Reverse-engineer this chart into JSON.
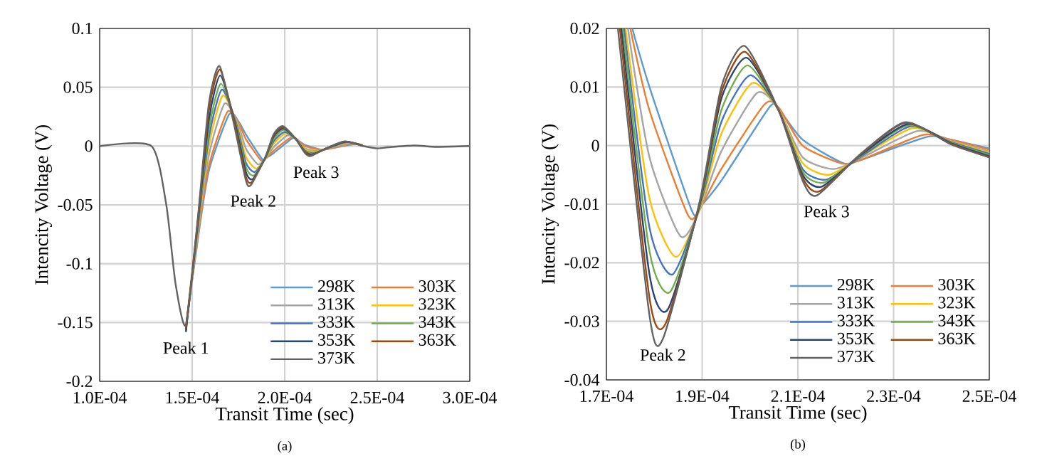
{
  "chart_data": [
    {
      "type": "line",
      "xlabel": "Transit Time (sec)",
      "ylabel": "Intencity Voltage (V)",
      "xlim": [
        0.0001,
        0.0003
      ],
      "ylim": [
        -0.2,
        0.1
      ],
      "xticks": [
        {
          "value": 0.0001,
          "label": "1.0E-04"
        },
        {
          "value": 0.00015,
          "label": "1.5E-04"
        },
        {
          "value": 0.0002,
          "label": "2.0E-04"
        },
        {
          "value": 0.00025,
          "label": "2.5E-04"
        },
        {
          "value": 0.0003,
          "label": "3.0E-04"
        }
      ],
      "yticks": [
        -0.2,
        -0.15,
        -0.1,
        -0.05,
        0,
        0.05,
        0.1
      ],
      "grid": true,
      "legend": "bottom right",
      "annotations": [
        {
          "text": "Peak 1",
          "x": 0.0001466,
          "y": -0.158
        },
        {
          "text": "Peak 2",
          "x": 0.000183,
          "y": -0.033
        },
        {
          "text": "Peak 3",
          "x": 0.000217,
          "y": -0.0085
        },
        "(a)"
      ],
      "series": [
        {
          "name": "298K",
          "color": "#5b9bd5",
          "x": [
            0.0001466,
            0.000153,
            0.000159,
            0.00017,
            0.0001754,
            0.000179,
            0.0001878,
            0.0001895,
            0.000194,
            0.000204,
            0.000206,
            0.000211,
            0.0002195,
            0.000223,
            0.000237,
            0.000242
          ],
          "values": [
            -0.154,
            -0.08,
            -0.021,
            0.027,
            0.02,
            0.01,
            -0.011,
            -0.0105,
            -0.006,
            0.0065,
            0.0062,
            0.001,
            -0.003,
            -0.0025,
            0.0015,
            0.001
          ]
        },
        {
          "name": "303K",
          "color": "#ed7d31",
          "x": [
            0.0001466,
            0.000153,
            0.000159,
            0.000169,
            0.000175,
            0.000179,
            0.000187,
            0.0001895,
            0.000194,
            0.000203,
            0.000206,
            0.000211,
            0.000219,
            0.000223,
            0.000236,
            0.000242
          ],
          "values": [
            -0.153,
            -0.078,
            -0.017,
            0.029,
            0.02,
            0.006,
            -0.0118,
            -0.0108,
            -0.004,
            0.007,
            0.0065,
            0.0,
            -0.003,
            -0.0025,
            0.0018,
            0.001
          ]
        },
        {
          "name": "313K",
          "color": "#a5a5a5",
          "x": [
            0.0001466,
            0.000153,
            0.000159,
            0.0001675,
            0.0001745,
            0.000179,
            0.0001855,
            0.0001895,
            0.000194,
            0.0002015,
            0.000206,
            0.000211,
            0.0002175,
            0.000223,
            0.000235,
            0.000242
          ],
          "values": [
            -0.155,
            -0.075,
            -0.008,
            0.036,
            0.02,
            -0.002,
            -0.0155,
            -0.011,
            -0.001,
            0.009,
            0.0062,
            -0.002,
            -0.004,
            -0.0022,
            0.0025,
            0.0008
          ]
        },
        {
          "name": "323K",
          "color": "#ffc000",
          "x": [
            0.0001466,
            0.000153,
            0.000159,
            0.0001665,
            0.000174,
            0.000179,
            0.0001845,
            0.0001895,
            0.000194,
            0.0002005,
            0.000206,
            0.000211,
            0.0002165,
            0.000223,
            0.000234,
            0.000242
          ],
          "values": [
            -0.156,
            -0.072,
            0.0,
            0.043,
            0.02,
            -0.009,
            -0.019,
            -0.0108,
            0.002,
            0.0107,
            0.006,
            -0.003,
            -0.005,
            -0.002,
            0.003,
            0.0007
          ]
        },
        {
          "name": "333K",
          "color": "#4472c4",
          "x": [
            0.0001466,
            0.000153,
            0.000159,
            0.000166,
            0.0001737,
            0.000179,
            0.0001838,
            0.0001895,
            0.000194,
            0.0002,
            0.000206,
            0.000211,
            0.000216,
            0.000223,
            0.0002335,
            0.000242
          ],
          "values": [
            -0.156,
            -0.07,
            0.007,
            0.048,
            0.02,
            -0.014,
            -0.022,
            -0.0105,
            0.004,
            0.012,
            0.006,
            -0.004,
            -0.0058,
            -0.002,
            0.0033,
            0.0006
          ]
        },
        {
          "name": "343K",
          "color": "#70ad47",
          "x": [
            0.0001466,
            0.000153,
            0.000159,
            0.0001655,
            0.0001734,
            0.000179,
            0.0001833,
            0.0001895,
            0.000194,
            0.0001995,
            0.000206,
            0.000211,
            0.0002155,
            0.000223,
            0.000233,
            0.000242
          ],
          "values": [
            -0.157,
            -0.068,
            0.014,
            0.053,
            0.02,
            -0.018,
            -0.025,
            -0.0103,
            0.006,
            0.0137,
            0.006,
            -0.0045,
            -0.0063,
            -0.0018,
            0.0035,
            0.0005
          ]
        },
        {
          "name": "353K",
          "color": "#264478",
          "x": [
            0.0001466,
            0.000153,
            0.000159,
            0.0001652,
            0.0001731,
            0.000179,
            0.0001828,
            0.0001895,
            0.000194,
            0.0001993,
            0.000206,
            0.000211,
            0.000215,
            0.000223,
            0.000233,
            0.000242
          ],
          "values": [
            -0.158,
            -0.066,
            0.022,
            0.06,
            0.02,
            -0.022,
            -0.028,
            -0.01,
            0.008,
            0.015,
            0.006,
            -0.005,
            -0.007,
            -0.0017,
            0.0037,
            0.0004
          ]
        },
        {
          "name": "363K",
          "color": "#9e480e",
          "x": [
            0.0001466,
            0.000153,
            0.000159,
            0.000165,
            0.0001728,
            0.000179,
            0.0001823,
            0.0001895,
            0.000194,
            0.000199,
            0.000206,
            0.000211,
            0.0002145,
            0.000223,
            0.0002325,
            0.000242
          ],
          "values": [
            -0.155,
            -0.064,
            0.03,
            0.065,
            0.02,
            -0.026,
            -0.0305,
            -0.0098,
            0.009,
            0.016,
            0.006,
            -0.0055,
            -0.0078,
            -0.0016,
            0.0039,
            0.0003
          ]
        },
        {
          "name": "373K",
          "color": "#636363",
          "x": [
            0.0001,
            0.000128,
            0.000136,
            0.000141,
            0.0001466,
            0.000153,
            0.000159,
            0.0001648,
            0.0001724,
            0.000179,
            0.0001818,
            0.0001895,
            0.000194,
            0.0001989,
            0.000206,
            0.000211,
            0.000214,
            0.000223,
            0.0002325,
            0.000242,
            0.00025,
            0.000256,
            0.00027,
            0.000282,
            0.0003
          ],
          "values": [
            0,
            0,
            -0.05,
            -0.117,
            -0.152,
            -0.062,
            0.036,
            0.068,
            0.02,
            -0.029,
            -0.033,
            -0.0095,
            0.01,
            0.017,
            0.006,
            -0.006,
            -0.0085,
            -0.0015,
            0.004,
            0.0002,
            -0.002,
            -0.001,
            0.0005,
            -0.0007,
            0
          ]
        }
      ]
    },
    {
      "type": "line",
      "xlabel": "Transit Time (sec)",
      "ylabel": "Intencity Voltage (V)",
      "xlim": [
        0.00017,
        0.00025
      ],
      "ylim": [
        -0.04,
        0.02
      ],
      "xticks": [
        {
          "value": 0.00017,
          "label": "1.7E-04"
        },
        {
          "value": 0.00019,
          "label": "1.9E-04"
        },
        {
          "value": 0.00021,
          "label": "2.1E-04"
        },
        {
          "value": 0.00023,
          "label": "2.3E-04"
        },
        {
          "value": 0.00025,
          "label": "2.5E-04"
        }
      ],
      "yticks": [
        -0.04,
        -0.03,
        -0.02,
        -0.01,
        0,
        0.01,
        0.02
      ],
      "grid": true,
      "legend": "bottom right",
      "annotations": [
        {
          "text": "Peak 2",
          "x": 0.0001818,
          "y": -0.033
        },
        {
          "text": "Peak 3",
          "x": 0.000216,
          "y": -0.0085
        },
        "(b)"
      ],
      "series": [
        {
          "name": "298K",
          "color": "#5b9bd5",
          "x": [
            0.0001754,
            0.000179,
            0.0001878,
            0.0001895,
            0.000194,
            0.000204,
            0.000206,
            0.000211,
            0.0002195,
            0.000223,
            0.000237,
            0.000242,
            0.00025
          ],
          "values": [
            0.02,
            0.01,
            -0.011,
            -0.0105,
            -0.006,
            0.0065,
            0.0062,
            0.001,
            -0.003,
            -0.0025,
            0.0015,
            0.001,
            -0.0005
          ]
        },
        {
          "name": "303K",
          "color": "#ed7d31",
          "x": [
            0.000175,
            0.000179,
            0.000187,
            0.0001895,
            0.000194,
            0.000203,
            0.000206,
            0.000211,
            0.000219,
            0.000223,
            0.000236,
            0.000242,
            0.00025
          ],
          "values": [
            0.02,
            0.006,
            -0.0118,
            -0.0108,
            -0.004,
            0.007,
            0.0065,
            0.0,
            -0.003,
            -0.0025,
            0.0018,
            0.001,
            -0.0007
          ]
        },
        {
          "name": "313K",
          "color": "#a5a5a5",
          "x": [
            0.0001745,
            0.000179,
            0.0001855,
            0.0001895,
            0.000194,
            0.0002015,
            0.000206,
            0.000211,
            0.0002175,
            0.000223,
            0.000235,
            0.000242,
            0.00025
          ],
          "values": [
            0.02,
            -0.002,
            -0.0155,
            -0.011,
            -0.001,
            0.009,
            0.0062,
            -0.002,
            -0.004,
            -0.0022,
            0.0025,
            0.0008,
            -0.001
          ]
        },
        {
          "name": "323K",
          "color": "#ffc000",
          "x": [
            0.000174,
            0.000179,
            0.0001845,
            0.0001895,
            0.000194,
            0.0002005,
            0.000206,
            0.000211,
            0.0002165,
            0.000223,
            0.000234,
            0.000242,
            0.00025
          ],
          "values": [
            0.02,
            -0.009,
            -0.019,
            -0.0108,
            0.002,
            0.0107,
            0.006,
            -0.003,
            -0.005,
            -0.002,
            0.003,
            0.0007,
            -0.0012
          ]
        },
        {
          "name": "333K",
          "color": "#4472c4",
          "x": [
            0.0001737,
            0.000179,
            0.0001838,
            0.0001895,
            0.000194,
            0.0002,
            0.000206,
            0.000211,
            0.000216,
            0.000223,
            0.0002335,
            0.000242,
            0.00025
          ],
          "values": [
            0.02,
            -0.014,
            -0.022,
            -0.0105,
            0.004,
            0.012,
            0.006,
            -0.004,
            -0.0058,
            -0.002,
            0.0033,
            0.0006,
            -0.0014
          ]
        },
        {
          "name": "343K",
          "color": "#70ad47",
          "x": [
            0.0001734,
            0.000179,
            0.0001833,
            0.0001895,
            0.000194,
            0.0001995,
            0.000206,
            0.000211,
            0.0002155,
            0.000223,
            0.000233,
            0.000242,
            0.00025
          ],
          "values": [
            0.02,
            -0.018,
            -0.025,
            -0.0103,
            0.006,
            0.0137,
            0.006,
            -0.0045,
            -0.0063,
            -0.0018,
            0.0035,
            0.0005,
            -0.0016
          ]
        },
        {
          "name": "353K",
          "color": "#264478",
          "x": [
            0.0001731,
            0.000179,
            0.0001828,
            0.0001895,
            0.000194,
            0.0001993,
            0.000206,
            0.000211,
            0.000215,
            0.000223,
            0.000233,
            0.000242,
            0.00025
          ],
          "values": [
            0.02,
            -0.022,
            -0.028,
            -0.01,
            0.008,
            0.015,
            0.006,
            -0.005,
            -0.007,
            -0.0017,
            0.0037,
            0.0004,
            -0.0018
          ]
        },
        {
          "name": "363K",
          "color": "#9e480e",
          "x": [
            0.0001728,
            0.000179,
            0.0001823,
            0.0001895,
            0.000194,
            0.000199,
            0.000206,
            0.000211,
            0.0002145,
            0.000223,
            0.0002325,
            0.000242,
            0.00025
          ],
          "values": [
            0.02,
            -0.026,
            -0.0305,
            -0.0098,
            0.009,
            0.016,
            0.006,
            -0.0055,
            -0.0078,
            -0.0016,
            0.0039,
            0.0003,
            -0.002
          ]
        },
        {
          "name": "373K",
          "color": "#636363",
          "x": [
            0.0001724,
            0.000179,
            0.0001818,
            0.0001895,
            0.000194,
            0.0001989,
            0.000206,
            0.000211,
            0.000214,
            0.000223,
            0.0002325,
            0.000242,
            0.00025
          ],
          "values": [
            0.02,
            -0.029,
            -0.033,
            -0.0095,
            0.01,
            0.017,
            0.006,
            -0.006,
            -0.0085,
            -0.0015,
            0.004,
            0.0002,
            -0.002
          ]
        }
      ]
    }
  ]
}
